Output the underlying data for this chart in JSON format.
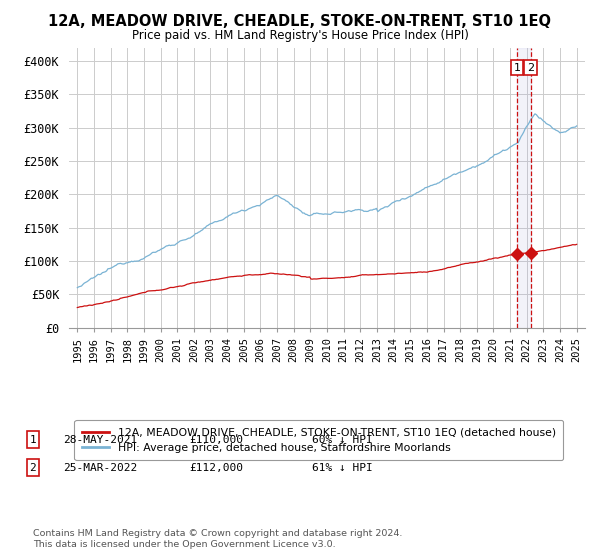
{
  "title": "12A, MEADOW DRIVE, CHEADLE, STOKE-ON-TRENT, ST10 1EQ",
  "subtitle": "Price paid vs. HM Land Registry's House Price Index (HPI)",
  "ylim": [
    0,
    420000
  ],
  "yticks": [
    0,
    50000,
    100000,
    150000,
    200000,
    250000,
    300000,
    350000,
    400000
  ],
  "ytick_labels": [
    "£0",
    "£50K",
    "£100K",
    "£150K",
    "£200K",
    "£250K",
    "£300K",
    "£350K",
    "£400K"
  ],
  "hpi_color": "#7ab3d4",
  "price_color": "#cc1111",
  "annotation_color": "#cc1111",
  "grid_color": "#cccccc",
  "background_color": "#ffffff",
  "sale1_date": "28-MAY-2021",
  "sale1_price": "£110,000",
  "sale1_pct": "60% ↓ HPI",
  "sale1_year": 2021.41,
  "sale1_price_val": 110000,
  "sale2_date": "25-MAR-2022",
  "sale2_price": "£112,000",
  "sale2_pct": "61% ↓ HPI",
  "sale2_year": 2022.23,
  "sale2_price_val": 112000,
  "legend_label1": "12A, MEADOW DRIVE, CHEADLE, STOKE-ON-TRENT, ST10 1EQ (detached house)",
  "legend_label2": "HPI: Average price, detached house, Staffordshire Moorlands",
  "footnote": "Contains HM Land Registry data © Crown copyright and database right 2024.\nThis data is licensed under the Open Government Licence v3.0."
}
